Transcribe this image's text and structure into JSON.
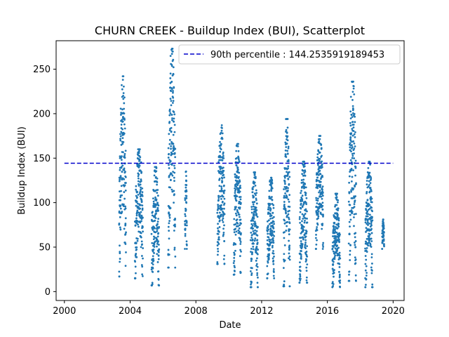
{
  "chart_data": {
    "type": "scatter",
    "title": "CHURN CREEK - Buildup Index (BUI), Scatterplot",
    "xlabel": "Date",
    "ylabel": "Buildup Index (BUI)",
    "xlim": [
      "1999-07-01",
      "2020-09-01"
    ],
    "ylim": [
      -10,
      282
    ],
    "x_ticks": [
      "2000",
      "2004",
      "2008",
      "2012",
      "2016",
      "2020"
    ],
    "x_tick_dates": [
      "2000-01-01",
      "2004-01-01",
      "2008-01-01",
      "2012-01-01",
      "2016-01-01",
      "2020-01-01"
    ],
    "y_ticks": [
      0,
      50,
      100,
      150,
      200,
      250
    ],
    "grid": false,
    "series_color": "#1f77b4",
    "percentile_color": "#0000cc",
    "legend_position": "top-right",
    "percentile_line": {
      "label": "90th percentile : 144.2535919189453",
      "value": 144.2535919189453,
      "x_start": "2000-01-01",
      "x_end": "2020-01-01",
      "style": "dashed"
    },
    "season_ranges": [
      {
        "start": "2003-05-01",
        "end": "2003-09-30",
        "min": 17,
        "max": 242
      },
      {
        "start": "2004-04-15",
        "end": "2004-10-10",
        "min": 15,
        "max": 160
      },
      {
        "start": "2005-04-20",
        "end": "2005-10-05",
        "min": 7,
        "max": 140
      },
      {
        "start": "2006-04-25",
        "end": "2006-09-30",
        "min": 27,
        "max": 273
      },
      {
        "start": "2007-05-01",
        "end": "2007-06-15",
        "min": 48,
        "max": 135
      },
      {
        "start": "2009-04-20",
        "end": "2009-09-30",
        "min": 31,
        "max": 187
      },
      {
        "start": "2010-04-20",
        "end": "2010-09-30",
        "min": 19,
        "max": 166
      },
      {
        "start": "2011-05-01",
        "end": "2011-10-10",
        "min": 5,
        "max": 134
      },
      {
        "start": "2012-05-01",
        "end": "2012-10-05",
        "min": 15,
        "max": 128
      },
      {
        "start": "2013-05-01",
        "end": "2013-09-20",
        "min": 6,
        "max": 194
      },
      {
        "start": "2014-04-20",
        "end": "2014-10-10",
        "min": 10,
        "max": 146
      },
      {
        "start": "2015-04-20",
        "end": "2015-09-30",
        "min": 48,
        "max": 175
      },
      {
        "start": "2016-04-20",
        "end": "2016-10-10",
        "min": 5,
        "max": 110
      },
      {
        "start": "2017-04-20",
        "end": "2017-09-30",
        "min": 12,
        "max": 236
      },
      {
        "start": "2018-04-20",
        "end": "2018-09-30",
        "min": 5,
        "max": 146
      },
      {
        "start": "2019-05-01",
        "end": "2019-06-15",
        "min": 48,
        "max": 81
      }
    ]
  }
}
